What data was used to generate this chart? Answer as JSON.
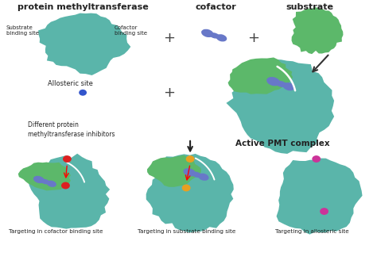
{
  "bg_color": "#ffffff",
  "teal_color": "#5ab5aa",
  "green_color": "#5cb86a",
  "blue_cofactor": "#6878c8",
  "blue_dot": "#3355cc",
  "red_dot": "#dd2020",
  "yellow_dot": "#e8a020",
  "pink_dot": "#cc3399",
  "text_color": "#222222",
  "labels": {
    "title": "protein methyltransferase",
    "cofactor": "cofactor",
    "substrate": "substrate",
    "substrate_binding": "Substrate\nbinding site",
    "cofactor_binding": "Cofactor\nbinding site",
    "allosteric": "Allosteric site",
    "different_inhibitors": "Different protein\nmethyltransferase inhibitors",
    "active_pmt": "Active PMT complex",
    "targeting_cofactor": "Targeting in cofactor binding site",
    "targeting_substrate": "Targeting in substrate binding site",
    "targeting_allosteric": "Targeting in allosteric site"
  }
}
